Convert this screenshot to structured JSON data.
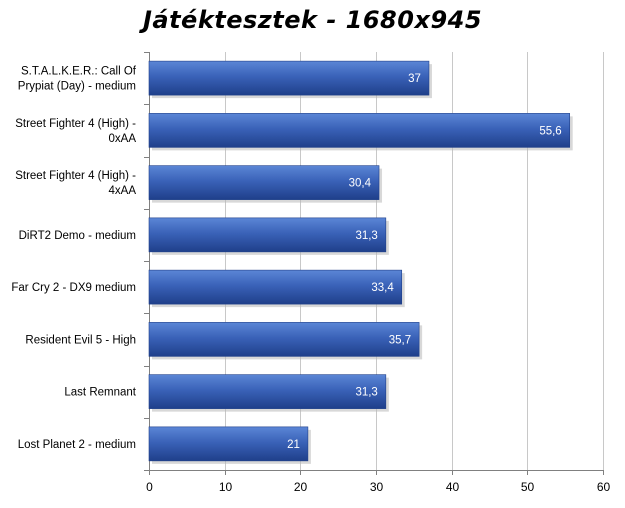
{
  "chart_data": {
    "type": "bar",
    "orientation": "horizontal",
    "title": "Játéktesztek - 1680x945",
    "categories": [
      [
        "S.T.A.L.K.E.R.: Call Of",
        "Prypiat (Day) - medium"
      ],
      [
        "Street Fighter 4 (High) -",
        "0xAA"
      ],
      [
        "Street Fighter 4 (High) -",
        "4xAA"
      ],
      [
        "DiRT2 Demo - medium"
      ],
      [
        "Far Cry 2 - DX9 medium"
      ],
      [
        "Resident Evil 5 - High"
      ],
      [
        "Last Remnant"
      ],
      [
        "Lost Planet 2 - medium"
      ]
    ],
    "values": [
      37,
      55.6,
      30.4,
      31.3,
      33.4,
      35.7,
      31.3,
      21
    ],
    "value_labels": [
      "37",
      "55,6",
      "30,4",
      "31,3",
      "33,4",
      "35,7",
      "31,3",
      "21"
    ],
    "xlim": [
      0,
      60
    ],
    "xticks": [
      0,
      10,
      20,
      30,
      40,
      50,
      60
    ],
    "grid": true,
    "legend": "none",
    "bar_color": "#3a62b8",
    "bar_color_light": "#5b86d6",
    "bar_color_dark": "#1f3f8a"
  }
}
